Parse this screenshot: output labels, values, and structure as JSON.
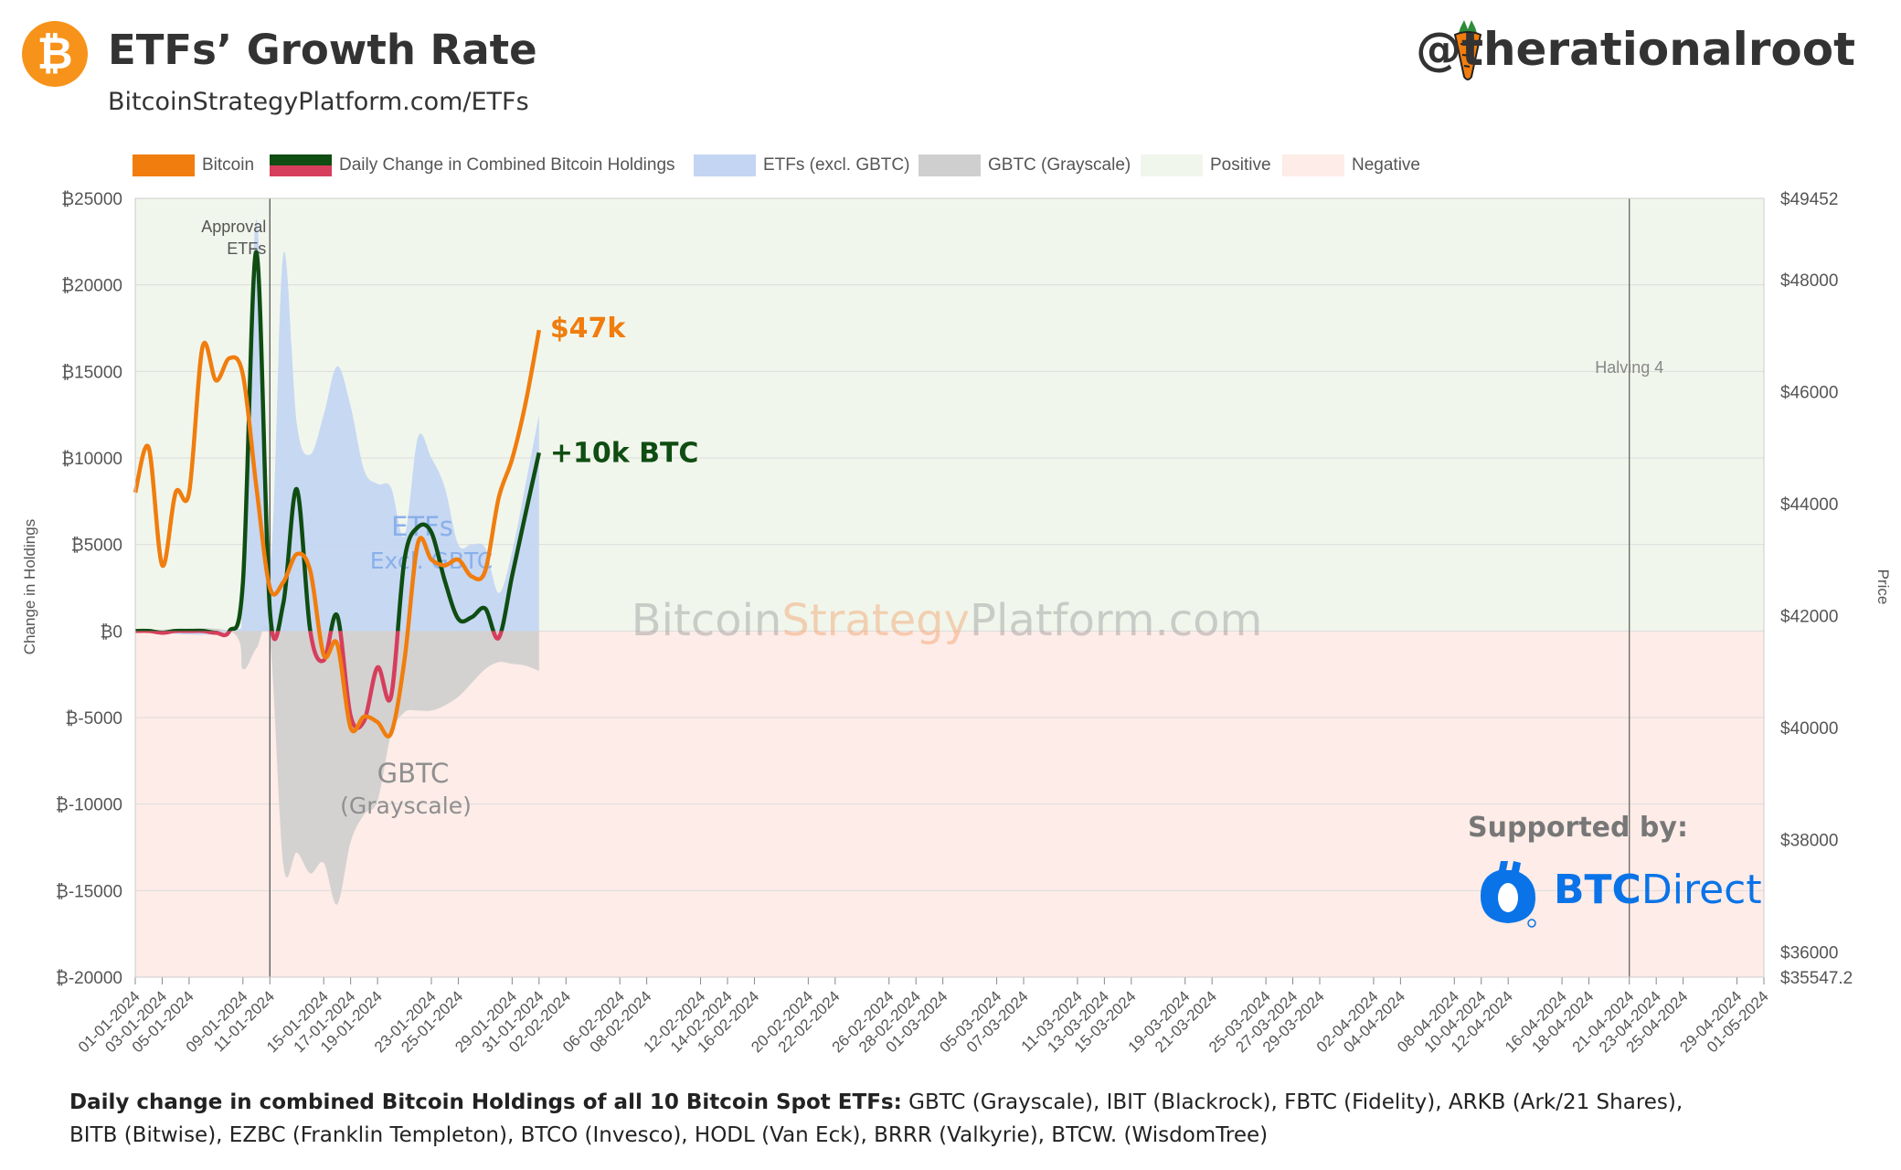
{
  "header": {
    "logo_glyph": "₿",
    "title": "ETFs’ Growth Rate",
    "subtitle": "BitcoinStrategyPlatform.com/ETFs",
    "handle": "@therationalroot",
    "carrot_icon": "carrot-icon"
  },
  "legend": [
    {
      "label": "Bitcoin",
      "color": "#f07d0e"
    },
    {
      "label": "Daily Change in Combined Bitcoin Holdings",
      "color": "#0f4d12",
      "color2": "#d63e5c"
    },
    {
      "label": "ETFs (excl. GBTC)",
      "color": "#c3d5f3"
    },
    {
      "label": "GBTC (Grayscale)",
      "color": "#cfcfcf"
    },
    {
      "label": "Positive",
      "color": "#f1f6ec"
    },
    {
      "label": "Negative",
      "color": "#fdece7"
    }
  ],
  "annotations": {
    "approval": [
      "Approval",
      "ETFs"
    ],
    "halving": "Halving 4",
    "etfs_label": "ETFs",
    "etfs_sub": "Excl. GBTC",
    "gbtc_label": "GBTC",
    "gbtc_sub": "(Grayscale)",
    "price_end": "$47k",
    "holdings_end": "+10k BTC",
    "watermark": [
      "Bitcoin",
      "Strategy",
      "Platform.com"
    ]
  },
  "support": {
    "label": "Supported by:",
    "brand_bold": "BTC",
    "brand_rest": "Direct"
  },
  "footer": {
    "bold": "Daily change in combined Bitcoin Holdings of all 10 Bitcoin Spot ETFs:",
    "line1": " GBTC (Grayscale), IBIT (Blackrock), FBTC (Fidelity), ARKB (Ark/21 Shares),",
    "line2": "BITB (Bitwise), EZBC (Franklin Templeton), BTCO (Invesco), HODL (Van Eck), BRRR (Valkyrie), BTCW. (WisdomTree)"
  },
  "chart_data": {
    "type": "line",
    "ylabel": "Change in Holdings",
    "y2label": "Price",
    "ylim": [
      -20000,
      25000
    ],
    "y_ticks": [
      "₿25000",
      "₿20000",
      "₿15000",
      "₿10000",
      "₿5000",
      "₿0",
      "₿-5000",
      "₿-10000",
      "₿-15000",
      "₿-20000"
    ],
    "y_tick_values": [
      25000,
      20000,
      15000,
      10000,
      5000,
      0,
      -5000,
      -10000,
      -15000,
      -20000
    ],
    "y2lim": [
      35547.2,
      49452
    ],
    "y2_ticks": [
      "$49452",
      "$48000",
      "$46000",
      "$44000",
      "$42000",
      "$40000",
      "$38000",
      "$36000",
      "$35547.2"
    ],
    "y2_tick_values": [
      49452,
      48000,
      46000,
      44000,
      42000,
      40000,
      38000,
      36000,
      35547.2
    ],
    "x_ticks": [
      "01-01-2024",
      "03-01-2024",
      "05-01-2024",
      "09-01-2024",
      "11-01-2024",
      "15-01-2024",
      "17-01-2024",
      "19-01-2024",
      "23-01-2024",
      "25-01-2024",
      "29-01-2024",
      "31-01-2024",
      "02-02-2024",
      "06-02-2024",
      "08-02-2024",
      "12-02-2024",
      "14-02-2024",
      "16-02-2024",
      "20-02-2024",
      "22-02-2024",
      "26-02-2024",
      "28-02-2024",
      "01-03-2024",
      "05-03-2024",
      "07-03-2024",
      "11-03-2024",
      "13-03-2024",
      "15-03-2024",
      "19-03-2024",
      "21-03-2024",
      "25-03-2024",
      "27-03-2024",
      "29-03-2024",
      "02-04-2024",
      "04-04-2024",
      "08-04-2024",
      "10-04-2024",
      "12-04-2024",
      "16-04-2024",
      "18-04-2024",
      "21-04-2024",
      "23-04-2024",
      "25-04-2024",
      "29-04-2024",
      "01-05-2024"
    ],
    "x_start": "2024-01-01",
    "x_end": "2024-05-01",
    "approval_date": "2024-01-11",
    "halving_date": "2024-04-21",
    "positive_color": "#f1f6ec",
    "negative_color": "#fdece7",
    "series": [
      {
        "name": "Bitcoin",
        "axis": "right",
        "color": "#f07d0e",
        "points": [
          [
            "2024-01-01",
            44200
          ],
          [
            "2024-01-02",
            45000
          ],
          [
            "2024-01-03",
            42900
          ],
          [
            "2024-01-04",
            44200
          ],
          [
            "2024-01-05",
            44200
          ],
          [
            "2024-01-06",
            46800
          ],
          [
            "2024-01-07",
            46200
          ],
          [
            "2024-01-08",
            46600
          ],
          [
            "2024-01-09",
            46300
          ],
          [
            "2024-01-10",
            44300
          ],
          [
            "2024-01-11",
            42500
          ],
          [
            "2024-01-12",
            42600
          ],
          [
            "2024-01-13",
            43100
          ],
          [
            "2024-01-14",
            42800
          ],
          [
            "2024-01-15",
            41300
          ],
          [
            "2024-01-16",
            41500
          ],
          [
            "2024-01-17",
            40000
          ],
          [
            "2024-01-18",
            40200
          ],
          [
            "2024-01-19",
            40100
          ],
          [
            "2024-01-20",
            39900
          ],
          [
            "2024-01-21",
            41200
          ],
          [
            "2024-01-22",
            43300
          ],
          [
            "2024-01-23",
            43000
          ],
          [
            "2024-01-24",
            42900
          ],
          [
            "2024-01-25",
            43000
          ],
          [
            "2024-01-26",
            42700
          ],
          [
            "2024-01-27",
            42800
          ],
          [
            "2024-01-28",
            44100
          ],
          [
            "2024-01-29",
            44800
          ],
          [
            "2024-01-30",
            45800
          ],
          [
            "2024-01-31",
            47100
          ]
        ]
      },
      {
        "name": "Daily Change in Combined Bitcoin Holdings",
        "axis": "left",
        "color_positive": "#0f4d12",
        "color_negative": "#d63e5c",
        "points": [
          [
            "2024-01-01",
            0
          ],
          [
            "2024-01-02",
            0
          ],
          [
            "2024-01-03",
            -100
          ],
          [
            "2024-01-04",
            0
          ],
          [
            "2024-01-05",
            0
          ],
          [
            "2024-01-06",
            0
          ],
          [
            "2024-01-07",
            -100
          ],
          [
            "2024-01-08",
            0
          ],
          [
            "2024-01-09",
            2800
          ],
          [
            "2024-01-10",
            21900
          ],
          [
            "2024-01-11",
            1200
          ],
          [
            "2024-01-12",
            1600
          ],
          [
            "2024-01-13",
            8200
          ],
          [
            "2024-01-14",
            0
          ],
          [
            "2024-01-15",
            -1700
          ],
          [
            "2024-01-16",
            900
          ],
          [
            "2024-01-17",
            -4900
          ],
          [
            "2024-01-18",
            -5200
          ],
          [
            "2024-01-19",
            -2100
          ],
          [
            "2024-01-20",
            -3800
          ],
          [
            "2024-01-21",
            4100
          ],
          [
            "2024-01-22",
            6000
          ],
          [
            "2024-01-23",
            5700
          ],
          [
            "2024-01-24",
            2900
          ],
          [
            "2024-01-25",
            700
          ],
          [
            "2024-01-26",
            800
          ],
          [
            "2024-01-27",
            1300
          ],
          [
            "2024-01-28",
            -400
          ],
          [
            "2024-01-29",
            3200
          ],
          [
            "2024-01-30",
            6800
          ],
          [
            "2024-01-31",
            10300
          ]
        ]
      },
      {
        "name": "ETFs (excl. GBTC)",
        "axis": "left",
        "color": "#c3d5f3",
        "points": [
          [
            "2024-01-01",
            0
          ],
          [
            "2024-01-08",
            0
          ],
          [
            "2024-01-09",
            3000
          ],
          [
            "2024-01-10",
            23800
          ],
          [
            "2024-01-11",
            4000
          ],
          [
            "2024-01-12",
            21800
          ],
          [
            "2024-01-13",
            12000
          ],
          [
            "2024-01-14",
            10200
          ],
          [
            "2024-01-15",
            12500
          ],
          [
            "2024-01-16",
            15300
          ],
          [
            "2024-01-17",
            13000
          ],
          [
            "2024-01-18",
            9300
          ],
          [
            "2024-01-19",
            8500
          ],
          [
            "2024-01-20",
            8300
          ],
          [
            "2024-01-21",
            5500
          ],
          [
            "2024-01-22",
            11200
          ],
          [
            "2024-01-23",
            10000
          ],
          [
            "2024-01-24",
            8300
          ],
          [
            "2024-01-25",
            5000
          ],
          [
            "2024-01-26",
            5000
          ],
          [
            "2024-01-27",
            4800
          ],
          [
            "2024-01-28",
            2200
          ],
          [
            "2024-01-29",
            4600
          ],
          [
            "2024-01-30",
            8500
          ],
          [
            "2024-01-31",
            12500
          ]
        ]
      },
      {
        "name": "GBTC (Grayscale)",
        "axis": "left",
        "color": "#cfcfcf",
        "points": [
          [
            "2024-01-01",
            0
          ],
          [
            "2024-01-08",
            0
          ],
          [
            "2024-01-09",
            -2200
          ],
          [
            "2024-01-10",
            -1000
          ],
          [
            "2024-01-11",
            -500
          ],
          [
            "2024-01-12",
            -13500
          ],
          [
            "2024-01-13",
            -12800
          ],
          [
            "2024-01-14",
            -14000
          ],
          [
            "2024-01-15",
            -13400
          ],
          [
            "2024-01-16",
            -15800
          ],
          [
            "2024-01-17",
            -12200
          ],
          [
            "2024-01-18",
            -10600
          ],
          [
            "2024-01-19",
            -9800
          ],
          [
            "2024-01-20",
            -6000
          ],
          [
            "2024-01-21",
            -4700
          ],
          [
            "2024-01-22",
            -4600
          ],
          [
            "2024-01-23",
            -4600
          ],
          [
            "2024-01-24",
            -4300
          ],
          [
            "2024-01-25",
            -3800
          ],
          [
            "2024-01-26",
            -3000
          ],
          [
            "2024-01-27",
            -2200
          ],
          [
            "2024-01-28",
            -1800
          ],
          [
            "2024-01-29",
            -1900
          ],
          [
            "2024-01-30",
            -2000
          ],
          [
            "2024-01-31",
            -2300
          ]
        ]
      }
    ]
  }
}
